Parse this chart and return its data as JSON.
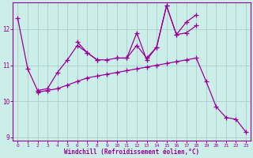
{
  "xlabel": "Windchill (Refroidissement éolien,°C)",
  "background_color": "#cceee8",
  "line_color": "#990099",
  "grid_color": "#aacccc",
  "x": [
    0,
    1,
    2,
    3,
    4,
    5,
    6,
    7,
    8,
    9,
    10,
    11,
    12,
    13,
    14,
    15,
    16,
    17,
    18,
    19,
    20,
    21,
    22,
    23
  ],
  "line1": [
    12.3,
    10.9,
    10.3,
    null,
    null,
    null,
    11.65,
    11.35,
    11.15,
    null,
    11.2,
    11.2,
    11.9,
    11.15,
    11.5,
    12.65,
    11.85,
    11.9,
    12.1,
    null,
    null,
    null,
    null,
    null
  ],
  "line2": [
    null,
    null,
    10.3,
    10.35,
    10.8,
    11.15,
    11.55,
    11.35,
    11.15,
    11.15,
    11.2,
    11.2,
    11.55,
    11.2,
    11.5,
    12.65,
    11.85,
    12.2,
    12.4,
    null,
    null,
    null,
    null,
    null
  ],
  "line3": [
    null,
    null,
    10.25,
    10.3,
    10.35,
    10.45,
    10.55,
    10.65,
    10.7,
    10.75,
    10.8,
    10.85,
    10.9,
    10.95,
    11.0,
    11.05,
    11.1,
    11.15,
    11.2,
    10.55,
    9.85,
    9.55,
    9.5,
    9.15
  ],
  "ylim": [
    8.9,
    12.75
  ],
  "yticks": [
    9,
    10,
    11,
    12
  ],
  "xticks": [
    0,
    1,
    2,
    3,
    4,
    5,
    6,
    7,
    8,
    9,
    10,
    11,
    12,
    13,
    14,
    15,
    16,
    17,
    18,
    19,
    20,
    21,
    22,
    23
  ]
}
